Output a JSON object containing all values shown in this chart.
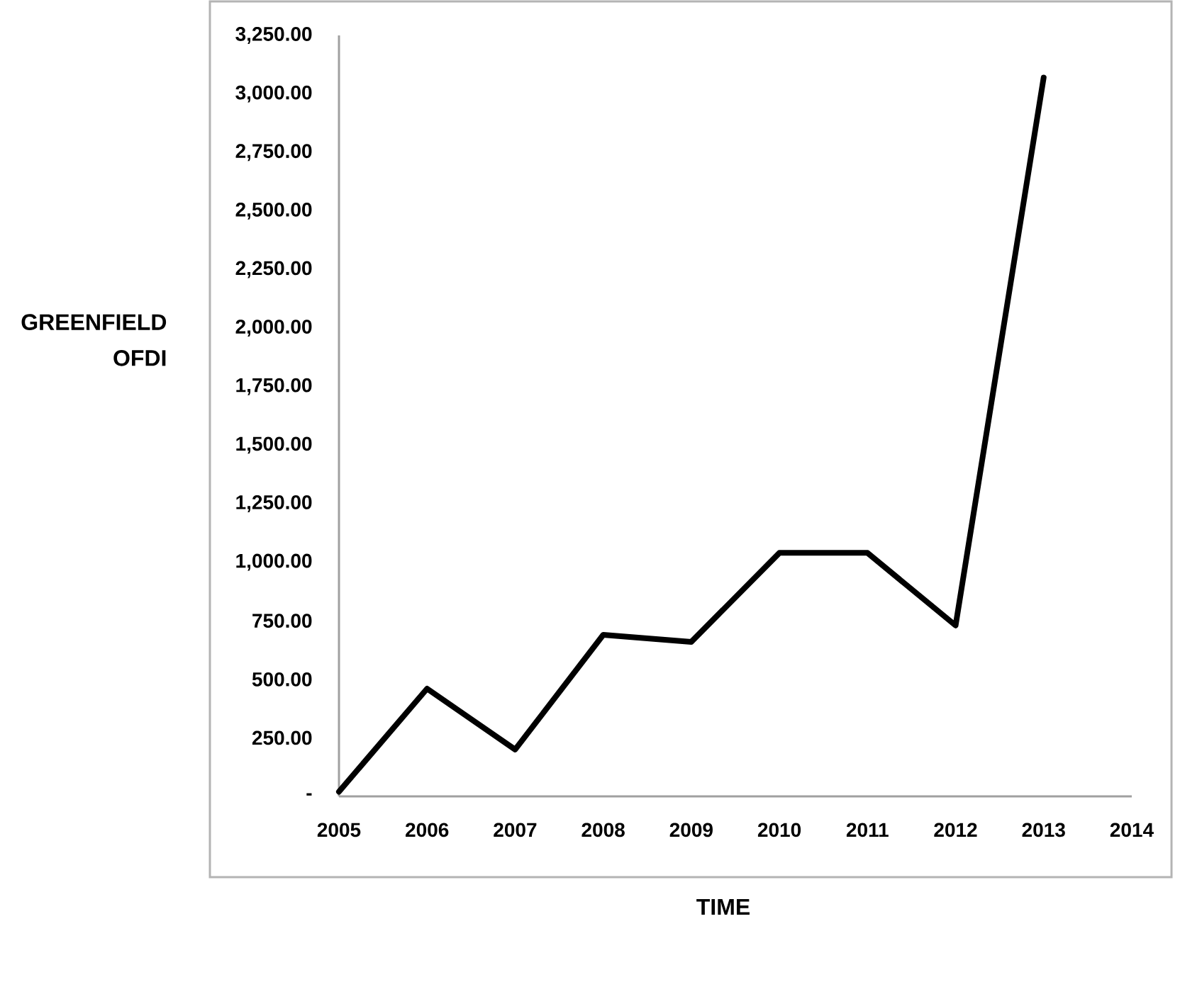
{
  "chart_data": {
    "type": "line",
    "xlabel": "TIME",
    "ylabel": "GREENFIELD OFDI",
    "categories": [
      "2005",
      "2006",
      "2007",
      "2008",
      "2009",
      "2010",
      "2011",
      "2012",
      "2013",
      "2014"
    ],
    "values": [
      20,
      460,
      200,
      690,
      660,
      1040,
      1040,
      730,
      3070,
      null
    ],
    "color": "#000000",
    "ylim": [
      0,
      3250
    ],
    "yticks": [
      {
        "value": 0,
        "label": "-"
      },
      {
        "value": 250,
        "label": "250.00"
      },
      {
        "value": 500,
        "label": "500.00"
      },
      {
        "value": 750,
        "label": "750.00"
      },
      {
        "value": 1000,
        "label": "1,000.00"
      },
      {
        "value": 1250,
        "label": "1,250.00"
      },
      {
        "value": 1500,
        "label": "1,500.00"
      },
      {
        "value": 1750,
        "label": "1,750.00"
      },
      {
        "value": 2000,
        "label": "2,000.00"
      },
      {
        "value": 2250,
        "label": "2,250.00"
      },
      {
        "value": 2500,
        "label": "2,500.00"
      },
      {
        "value": 2750,
        "label": "2,750.00"
      },
      {
        "value": 3000,
        "label": "3,000.00"
      },
      {
        "value": 3250,
        "label": "3,250.00"
      }
    ]
  }
}
